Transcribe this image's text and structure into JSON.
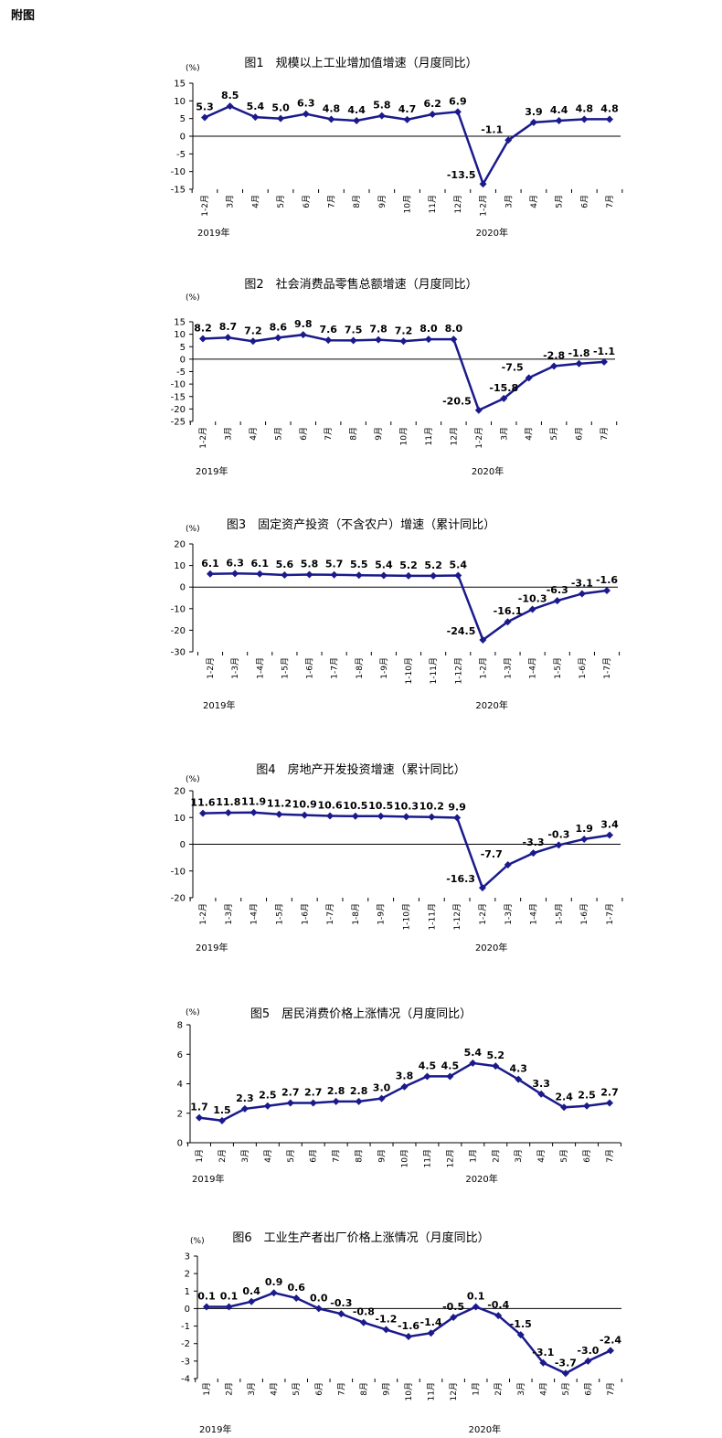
{
  "page": {
    "heading": "附图"
  },
  "chart_data": [
    {
      "type": "line",
      "title": "图1　规模以上工业增加值增速（月度同比）",
      "unit": "(%)",
      "ylim": [
        -15,
        15
      ],
      "yticks": [
        15,
        10,
        5,
        0,
        -5,
        -10,
        -15
      ],
      "categories": [
        "1-2月",
        "3月",
        "4月",
        "5月",
        "6月",
        "7月",
        "8月",
        "9月",
        "10月",
        "11月",
        "12月",
        "1-2月",
        "3月",
        "4月",
        "5月",
        "6月",
        "7月"
      ],
      "values": [
        5.3,
        8.5,
        5.4,
        5.0,
        6.3,
        4.8,
        4.4,
        5.8,
        4.7,
        6.2,
        6.9,
        -13.5,
        -1.1,
        3.9,
        4.4,
        4.8,
        4.8
      ],
      "labels": [
        "5.3",
        "8.5",
        "5.4",
        "5.0",
        "6.3",
        "4.8",
        "4.4",
        "5.8",
        "4.7",
        "6.2",
        "6.9",
        "-13.5",
        "-1.1",
        "3.9",
        "4.4",
        "4.8",
        "4.8"
      ],
      "years": [
        {
          "text": "2019年",
          "index": 0
        },
        {
          "text": "2020年",
          "index": 11
        }
      ]
    },
    {
      "type": "line",
      "title": "图2　社会消费品零售总额增速（月度同比）",
      "unit": "(%)",
      "ylim": [
        -25,
        15
      ],
      "yticks": [
        15,
        10,
        5,
        0,
        -5,
        -10,
        -15,
        -20,
        -25
      ],
      "categories": [
        "1-2月",
        "3月",
        "4月",
        "5月",
        "6月",
        "7月",
        "8月",
        "9月",
        "10月",
        "11月",
        "12月",
        "1-2月",
        "3月",
        "4月",
        "5月",
        "6月",
        "7月"
      ],
      "values": [
        8.2,
        8.7,
        7.2,
        8.6,
        9.8,
        7.6,
        7.5,
        7.8,
        7.2,
        8.0,
        8.0,
        -20.5,
        -15.8,
        -7.5,
        -2.8,
        -1.8,
        -1.1
      ],
      "labels": [
        "8.2",
        "8.7",
        "7.2",
        "8.6",
        "9.8",
        "7.6",
        "7.5",
        "7.8",
        "7.2",
        "8.0",
        "8.0",
        "-20.5",
        "-15.8",
        "-7.5",
        "-2.8",
        "-1.8",
        "-1.1"
      ],
      "years": [
        {
          "text": "2019年",
          "index": 0
        },
        {
          "text": "2020年",
          "index": 11
        }
      ]
    },
    {
      "type": "line",
      "title": "图3　固定资产投资（不含农户）增速（累计同比）",
      "unit": "(%)",
      "ylim": [
        -30,
        20
      ],
      "yticks": [
        20,
        10,
        0,
        -10,
        -20,
        -30
      ],
      "categories": [
        "1-2月",
        "1-3月",
        "1-4月",
        "1-5月",
        "1-6月",
        "1-7月",
        "1-8月",
        "1-9月",
        "1-10月",
        "1-11月",
        "1-12月",
        "1-2月",
        "1-3月",
        "1-4月",
        "1-5月",
        "1-6月",
        "1-7月"
      ],
      "values": [
        6.1,
        6.3,
        6.1,
        5.6,
        5.8,
        5.7,
        5.5,
        5.4,
        5.2,
        5.2,
        5.4,
        -24.5,
        -16.1,
        -10.3,
        -6.3,
        -3.1,
        -1.6
      ],
      "labels": [
        "6.1",
        "6.3",
        "6.1",
        "5.6",
        "5.8",
        "5.7",
        "5.5",
        "5.4",
        "5.2",
        "5.2",
        "5.4",
        "-24.5",
        "-16.1",
        "-10.3",
        "-6.3",
        "-3.1",
        "-1.6"
      ],
      "years": [
        {
          "text": "2019年",
          "index": 0
        },
        {
          "text": "2020年",
          "index": 11
        }
      ]
    },
    {
      "type": "line",
      "title": "图4　房地产开发投资增速（累计同比）",
      "unit": "(%)",
      "ylim": [
        -20,
        20
      ],
      "yticks": [
        20,
        10,
        0,
        -10,
        -20
      ],
      "categories": [
        "1-2月",
        "1-3月",
        "1-4月",
        "1-5月",
        "1-6月",
        "1-7月",
        "1-8月",
        "1-9月",
        "1-10月",
        "1-11月",
        "1-12月",
        "1-2月",
        "1-3月",
        "1-4月",
        "1-5月",
        "1-6月",
        "1-7月"
      ],
      "values": [
        11.6,
        11.8,
        11.9,
        11.2,
        10.9,
        10.6,
        10.5,
        10.5,
        10.3,
        10.2,
        9.9,
        -16.3,
        -7.7,
        -3.3,
        -0.3,
        1.9,
        3.4
      ],
      "labels": [
        "11.6",
        "11.8",
        "11.9",
        "11.2",
        "10.9",
        "10.6",
        "10.5",
        "10.5",
        "10.3",
        "10.2",
        "9.9",
        "-16.3",
        "-7.7",
        "-3.3",
        "-0.3",
        "1.9",
        "3.4"
      ],
      "years": [
        {
          "text": "2019年",
          "index": 0
        },
        {
          "text": "2020年",
          "index": 11
        }
      ]
    },
    {
      "type": "line",
      "title": "图5　居民消费价格上涨情况（月度同比）",
      "unit": "(%)",
      "ylim": [
        0,
        8
      ],
      "yticks": [
        8,
        6,
        4,
        2,
        0
      ],
      "categories": [
        "1月",
        "2月",
        "3月",
        "4月",
        "5月",
        "6月",
        "7月",
        "8月",
        "9月",
        "10月",
        "11月",
        "12月",
        "1月",
        "2月",
        "3月",
        "4月",
        "5月",
        "6月",
        "7月"
      ],
      "values": [
        1.7,
        1.5,
        2.3,
        2.5,
        2.7,
        2.7,
        2.8,
        2.8,
        3.0,
        3.8,
        4.5,
        4.5,
        5.4,
        5.2,
        4.3,
        3.3,
        2.4,
        2.5,
        2.7
      ],
      "labels": [
        "1.7",
        "1.5",
        "2.3",
        "2.5",
        "2.7",
        "2.7",
        "2.8",
        "2.8",
        "3.0",
        "3.8",
        "4.5",
        "4.5",
        "5.4",
        "5.2",
        "4.3",
        "3.3",
        "2.4",
        "2.5",
        "2.7"
      ],
      "years": [
        {
          "text": "2019年",
          "index": 0
        },
        {
          "text": "2020年",
          "index": 12
        }
      ]
    },
    {
      "type": "line",
      "title": "图6　工业生产者出厂价格上涨情况（月度同比）",
      "unit": "(%)",
      "ylim": [
        -4,
        3
      ],
      "yticks": [
        3,
        2,
        1,
        0,
        -1,
        -2,
        -3,
        -4
      ],
      "categories": [
        "1月",
        "2月",
        "3月",
        "4月",
        "5月",
        "6月",
        "7月",
        "8月",
        "9月",
        "10月",
        "11月",
        "12月",
        "1月",
        "2月",
        "3月",
        "4月",
        "5月",
        "6月",
        "7月"
      ],
      "values": [
        0.1,
        0.1,
        0.4,
        0.9,
        0.6,
        0.0,
        -0.3,
        -0.8,
        -1.2,
        -1.6,
        -1.4,
        -0.5,
        0.1,
        -0.4,
        -1.5,
        -3.1,
        -3.7,
        -3.0,
        -2.4
      ],
      "labels": [
        "0.1",
        "0.1",
        "0.4",
        "0.9",
        "0.6",
        "0.0",
        "-0.3",
        "-0.8",
        "-1.2",
        "-1.6",
        "-1.4",
        "-0.5",
        "0.1",
        "-0.4",
        "-1.5",
        "-3.1",
        "-3.7",
        "-3.0",
        "-2.4"
      ],
      "years": [
        {
          "text": "2019年",
          "index": 0
        },
        {
          "text": "2020年",
          "index": 12
        }
      ]
    }
  ]
}
